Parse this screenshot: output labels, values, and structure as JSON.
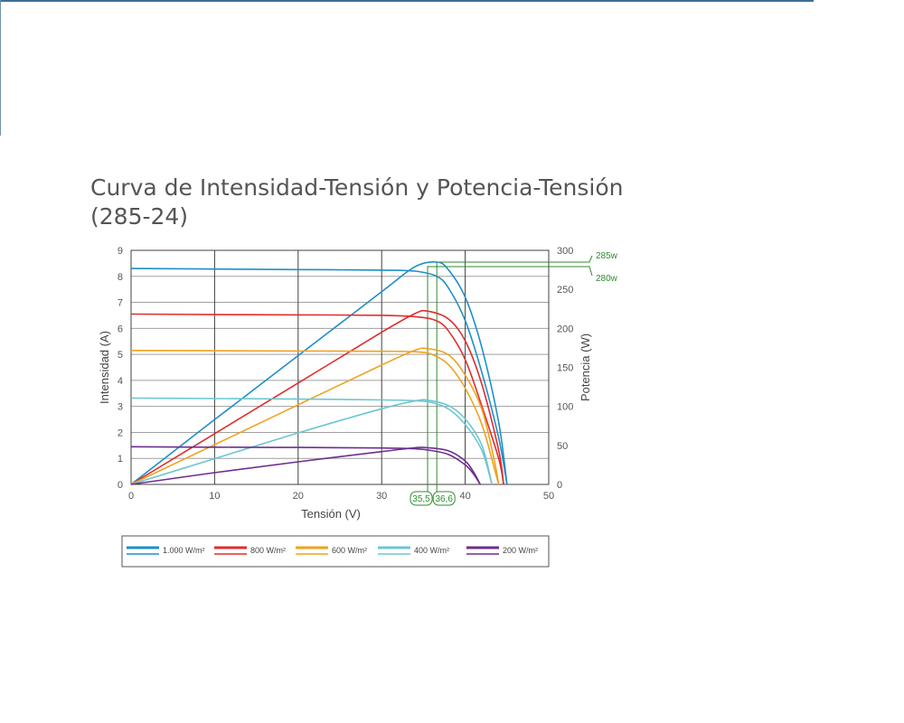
{
  "chart_data": {
    "type": "line",
    "title": "Curva de Intensidad-Tensión y Potencia-Tensión",
    "subtitle": "(285-24)",
    "xlabel": "Tensión (V)",
    "ylabel": "Intensidad (A)",
    "y2label": "Potencia (W)",
    "xlim": [
      0,
      50
    ],
    "ylim": [
      0,
      9
    ],
    "y2lim": [
      0,
      300
    ],
    "xticks": [
      "0",
      "10",
      "20",
      "30",
      "40",
      "50"
    ],
    "yticks": [
      "0",
      "1",
      "2",
      "3",
      "4",
      "5",
      "6",
      "7",
      "8",
      "9"
    ],
    "y2ticks": [
      "0",
      "50",
      "100",
      "150",
      "200",
      "250",
      "300"
    ],
    "grid": true,
    "legend_position": "bottom",
    "series": [
      {
        "name": "1.000 W/m²",
        "color": "#1e8fc8",
        "isc": 8.3,
        "voc": 45.0,
        "current": [
          [
            0,
            8.3
          ],
          [
            10,
            8.28
          ],
          [
            20,
            8.26
          ],
          [
            30,
            8.24
          ],
          [
            34,
            8.2
          ],
          [
            36.6,
            8.0
          ],
          [
            38,
            7.55
          ],
          [
            40,
            6.3
          ],
          [
            42,
            4.3
          ],
          [
            44,
            1.8
          ],
          [
            45,
            0
          ]
        ],
        "power": [
          [
            0,
            0
          ],
          [
            10,
            83
          ],
          [
            20,
            165
          ],
          [
            30,
            247
          ],
          [
            34,
            279
          ],
          [
            36.6,
            285
          ],
          [
            38,
            275
          ],
          [
            40,
            240
          ],
          [
            42,
            175
          ],
          [
            44,
            80
          ],
          [
            45,
            0
          ]
        ]
      },
      {
        "name": "800 W/m²",
        "color": "#e02d2d",
        "isc": 6.55,
        "voc": 44.6,
        "current": [
          [
            0,
            6.55
          ],
          [
            10,
            6.53
          ],
          [
            20,
            6.52
          ],
          [
            30,
            6.5
          ],
          [
            34,
            6.45
          ],
          [
            36.5,
            6.3
          ],
          [
            38,
            5.9
          ],
          [
            40,
            4.8
          ],
          [
            42,
            3.0
          ],
          [
            44,
            1.0
          ],
          [
            44.6,
            0
          ]
        ],
        "power": [
          [
            0,
            0
          ],
          [
            10,
            65
          ],
          [
            20,
            130
          ],
          [
            30,
            195
          ],
          [
            34,
            219
          ],
          [
            35.5,
            222
          ],
          [
            38,
            212
          ],
          [
            40,
            184
          ],
          [
            42,
            128
          ],
          [
            44,
            44
          ],
          [
            44.6,
            0
          ]
        ]
      },
      {
        "name": "600 W/m²",
        "color": "#f0a21e",
        "isc": 5.15,
        "voc": 44.0,
        "current": [
          [
            0,
            5.15
          ],
          [
            10,
            5.14
          ],
          [
            20,
            5.13
          ],
          [
            30,
            5.12
          ],
          [
            34,
            5.1
          ],
          [
            36,
            5.0
          ],
          [
            38,
            4.6
          ],
          [
            40,
            3.7
          ],
          [
            42,
            2.3
          ],
          [
            43.5,
            0.6
          ],
          [
            44,
            0
          ]
        ],
        "power": [
          [
            0,
            0
          ],
          [
            10,
            51
          ],
          [
            20,
            102
          ],
          [
            30,
            153
          ],
          [
            34,
            172
          ],
          [
            35.5,
            174
          ],
          [
            38,
            166
          ],
          [
            40,
            140
          ],
          [
            42,
            96
          ],
          [
            43.5,
            30
          ],
          [
            44,
            0
          ]
        ]
      },
      {
        "name": "400 W/m²",
        "color": "#6cc6d2",
        "isc": 3.32,
        "voc": 43.2,
        "current": [
          [
            0,
            3.32
          ],
          [
            10,
            3.3
          ],
          [
            20,
            3.28
          ],
          [
            30,
            3.25
          ],
          [
            34,
            3.22
          ],
          [
            36,
            3.15
          ],
          [
            38,
            2.9
          ],
          [
            40,
            2.3
          ],
          [
            42,
            1.3
          ],
          [
            43.2,
            0
          ]
        ],
        "power": [
          [
            0,
            0
          ],
          [
            10,
            33
          ],
          [
            20,
            66
          ],
          [
            30,
            97
          ],
          [
            34,
            107
          ],
          [
            35.5,
            108
          ],
          [
            38,
            101
          ],
          [
            40,
            84
          ],
          [
            42,
            50
          ],
          [
            43.2,
            0
          ]
        ]
      },
      {
        "name": "200 W/m²",
        "color": "#6c2e8f",
        "isc": 1.45,
        "voc": 41.8,
        "current": [
          [
            0,
            1.45
          ],
          [
            10,
            1.43
          ],
          [
            20,
            1.42
          ],
          [
            30,
            1.4
          ],
          [
            34,
            1.37
          ],
          [
            36,
            1.3
          ],
          [
            38,
            1.15
          ],
          [
            40,
            0.75
          ],
          [
            41,
            0.4
          ],
          [
            41.8,
            0
          ]
        ],
        "power": [
          [
            0,
            0
          ],
          [
            10,
            15
          ],
          [
            20,
            29
          ],
          [
            30,
            42
          ],
          [
            34,
            47
          ],
          [
            35.5,
            47
          ],
          [
            38,
            43
          ],
          [
            40,
            30
          ],
          [
            41,
            16
          ],
          [
            41.8,
            0
          ]
        ]
      }
    ],
    "annotations": {
      "vmp_labels": [
        "35,5",
        "36,6"
      ],
      "vmp_values": [
        35.5,
        36.6
      ],
      "pmax_labels": [
        "285w",
        "280w"
      ],
      "pmax_values": [
        285,
        280
      ],
      "color": "#2e8b2e"
    }
  }
}
